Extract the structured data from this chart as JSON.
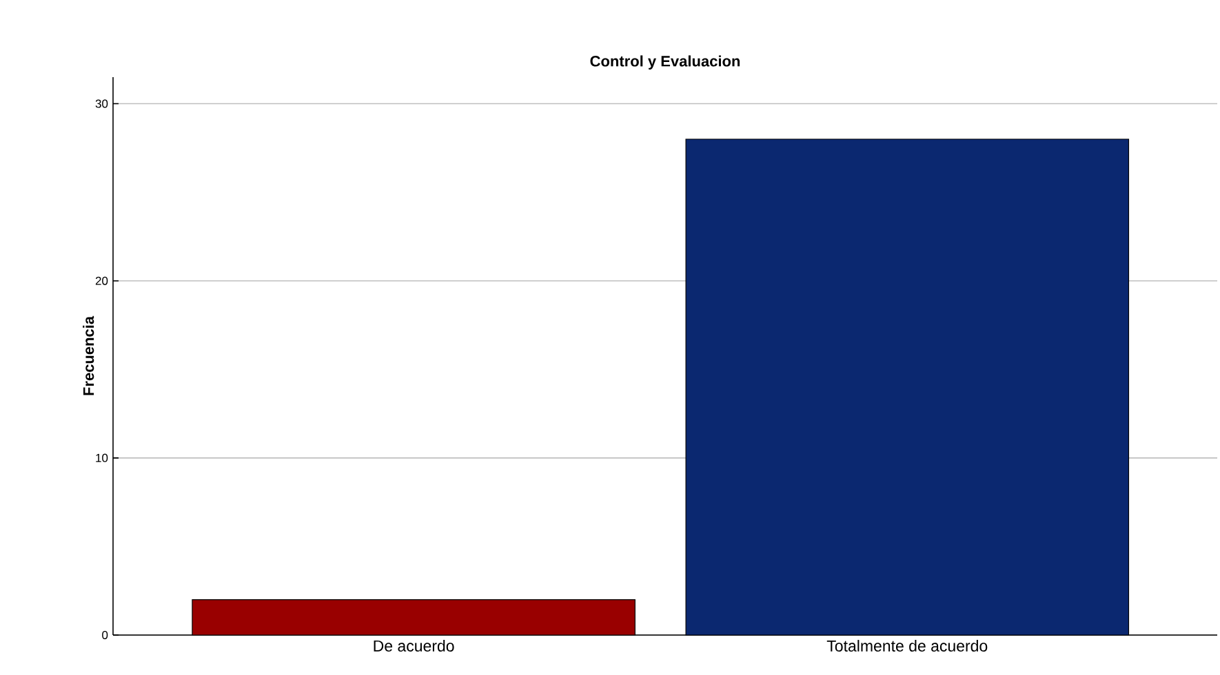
{
  "chart_data": {
    "type": "bar",
    "title": "Control y Evaluacion",
    "ylabel": "Frecuencia",
    "categories": [
      "De acuerdo",
      "Totalmente de acuerdo"
    ],
    "values": [
      2,
      28
    ],
    "colors": [
      "#990000",
      "#0b2870"
    ],
    "ylim": [
      0,
      31.5
    ],
    "yticks": [
      0,
      10,
      20,
      30
    ],
    "grid": "y"
  }
}
